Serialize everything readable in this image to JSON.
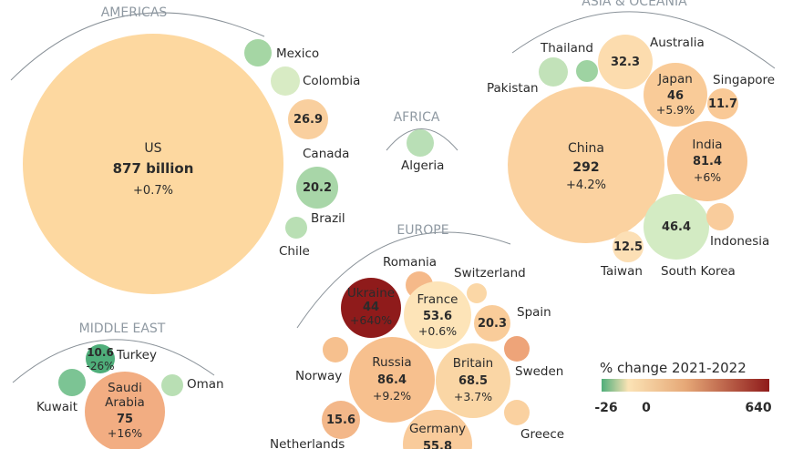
{
  "chart_data": {
    "type": "bubble",
    "title": "",
    "legend": {
      "title": "% change 2021-2022",
      "ticks": [
        "-26",
        "0",
        "640"
      ],
      "min": -26,
      "max": 640,
      "colors": [
        "#4fae7a",
        "#fbe3b5",
        "#e6a877",
        "#8f1b1b"
      ]
    },
    "regions": [
      {
        "name": "AMERICAS"
      },
      {
        "name": "AFRICA"
      },
      {
        "name": "ASIA & OCEANIA"
      },
      {
        "name": "EUROPE"
      },
      {
        "name": "MIDDLE EAST"
      }
    ],
    "bubbles": [
      {
        "country": "US",
        "region": "AMERICAS",
        "value": "877 billion",
        "change": "+0.7%",
        "color": "#fdd8a0"
      },
      {
        "country": "Mexico",
        "region": "AMERICAS",
        "value": "",
        "change": "",
        "color": "#a5d6a4"
      },
      {
        "country": "Colombia",
        "region": "AMERICAS",
        "value": "",
        "change": "",
        "color": "#d8ebc4"
      },
      {
        "country": "Canada",
        "region": "AMERICAS",
        "value": "26.9",
        "change": "",
        "color": "#f9cf9e"
      },
      {
        "country": "Brazil",
        "region": "AMERICAS",
        "value": "20.2",
        "change": "",
        "color": "#a8d6a8"
      },
      {
        "country": "Chile",
        "region": "AMERICAS",
        "value": "",
        "change": "",
        "color": "#b9dfb4"
      },
      {
        "country": "Algeria",
        "region": "AFRICA",
        "value": "",
        "change": "",
        "color": "#b9dfb6"
      },
      {
        "country": "China",
        "region": "ASIA & OCEANIA",
        "value": "292",
        "change": "+4.2%",
        "color": "#fbd2a0"
      },
      {
        "country": "Thailand",
        "region": "ASIA & OCEANIA",
        "value": "",
        "change": "",
        "color": "#c2e2b9"
      },
      {
        "country": "Pakistan",
        "region": "ASIA & OCEANIA",
        "value": "",
        "change": "",
        "color": "#9ed3a2"
      },
      {
        "country": "Australia",
        "region": "ASIA & OCEANIA",
        "value": "32.3",
        "change": "",
        "color": "#fcdcae"
      },
      {
        "country": "Japan",
        "region": "ASIA & OCEANIA",
        "value": "46",
        "change": "+5.9%",
        "color": "#f9cb98"
      },
      {
        "country": "Singapore",
        "region": "ASIA & OCEANIA",
        "value": "11.7",
        "change": "",
        "color": "#f9c996"
      },
      {
        "country": "India",
        "region": "ASIA & OCEANIA",
        "value": "81.4",
        "change": "+6%",
        "color": "#f8c592"
      },
      {
        "country": "South Korea",
        "region": "ASIA & OCEANIA",
        "value": "46.4",
        "change": "",
        "color": "#d3ebc3"
      },
      {
        "country": "Indonesia",
        "region": "ASIA & OCEANIA",
        "value": "",
        "change": "",
        "color": "#f9cc9c"
      },
      {
        "country": "Taiwan",
        "region": "ASIA & OCEANIA",
        "value": "12.5",
        "change": "",
        "color": "#fcdfb5"
      },
      {
        "country": "Ukraine",
        "region": "EUROPE",
        "value": "44",
        "change": "+640%",
        "color": "#8f1b1b"
      },
      {
        "country": "Romania",
        "region": "EUROPE",
        "value": "",
        "change": "",
        "color": "#f5b989"
      },
      {
        "country": "France",
        "region": "EUROPE",
        "value": "53.6",
        "change": "+0.6%",
        "color": "#fde4b8"
      },
      {
        "country": "Switzerland",
        "region": "EUROPE",
        "value": "",
        "change": "",
        "color": "#fbd7a6"
      },
      {
        "country": "Spain",
        "region": "EUROPE",
        "value": "20.3",
        "change": "",
        "color": "#f9cc9a"
      },
      {
        "country": "Norway",
        "region": "EUROPE",
        "value": "",
        "change": "",
        "color": "#f6c08e"
      },
      {
        "country": "Russia",
        "region": "EUROPE",
        "value": "86.4",
        "change": "+9.2%",
        "color": "#f7c08e"
      },
      {
        "country": "Britain",
        "region": "EUROPE",
        "value": "68.5",
        "change": "+3.7%",
        "color": "#fad6a5"
      },
      {
        "country": "Sweden",
        "region": "EUROPE",
        "value": "",
        "change": "",
        "color": "#eea479"
      },
      {
        "country": "Netherlands",
        "region": "EUROPE",
        "value": "15.6",
        "change": "",
        "color": "#f3b789"
      },
      {
        "country": "Germany",
        "region": "EUROPE",
        "value": "55.8",
        "change": "",
        "color": "#f9cb9b"
      },
      {
        "country": "Greece",
        "region": "EUROPE",
        "value": "",
        "change": "",
        "color": "#fad1a0"
      },
      {
        "country": "Turkey",
        "region": "MIDDLE EAST",
        "value": "10.6",
        "change": "-26%",
        "color": "#4fae7a"
      },
      {
        "country": "Kuwait",
        "region": "MIDDLE EAST",
        "value": "",
        "change": "",
        "color": "#7cc494"
      },
      {
        "country": "Saudi Arabia",
        "region": "MIDDLE EAST",
        "value": "75",
        "change": "+16%",
        "color": "#f2ad82"
      },
      {
        "country": "Oman",
        "region": "MIDDLE EAST",
        "value": "",
        "change": "",
        "color": "#b9dfb4"
      }
    ]
  }
}
